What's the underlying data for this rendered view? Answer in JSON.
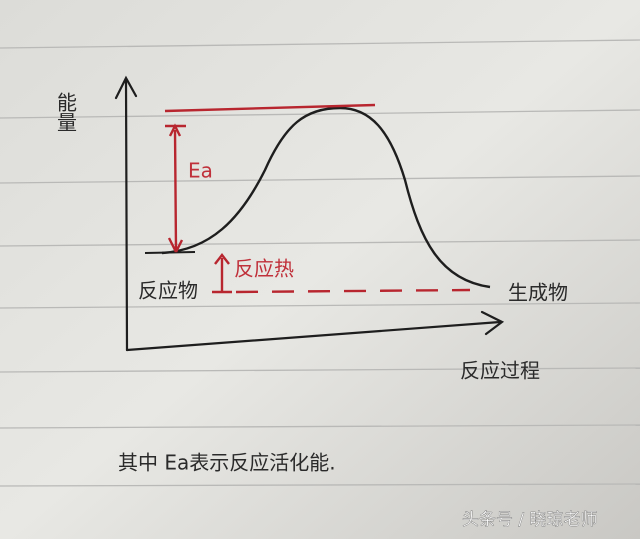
{
  "axes": {
    "y_label": "能量",
    "x_label": "反应过程"
  },
  "labels": {
    "activation": "Ea",
    "heat": "反应热",
    "reactants": "反应物",
    "products": "生成物"
  },
  "caption": "其中 Ea表示反应活化能.",
  "watermark": "头条号 / 晓琼老师"
}
